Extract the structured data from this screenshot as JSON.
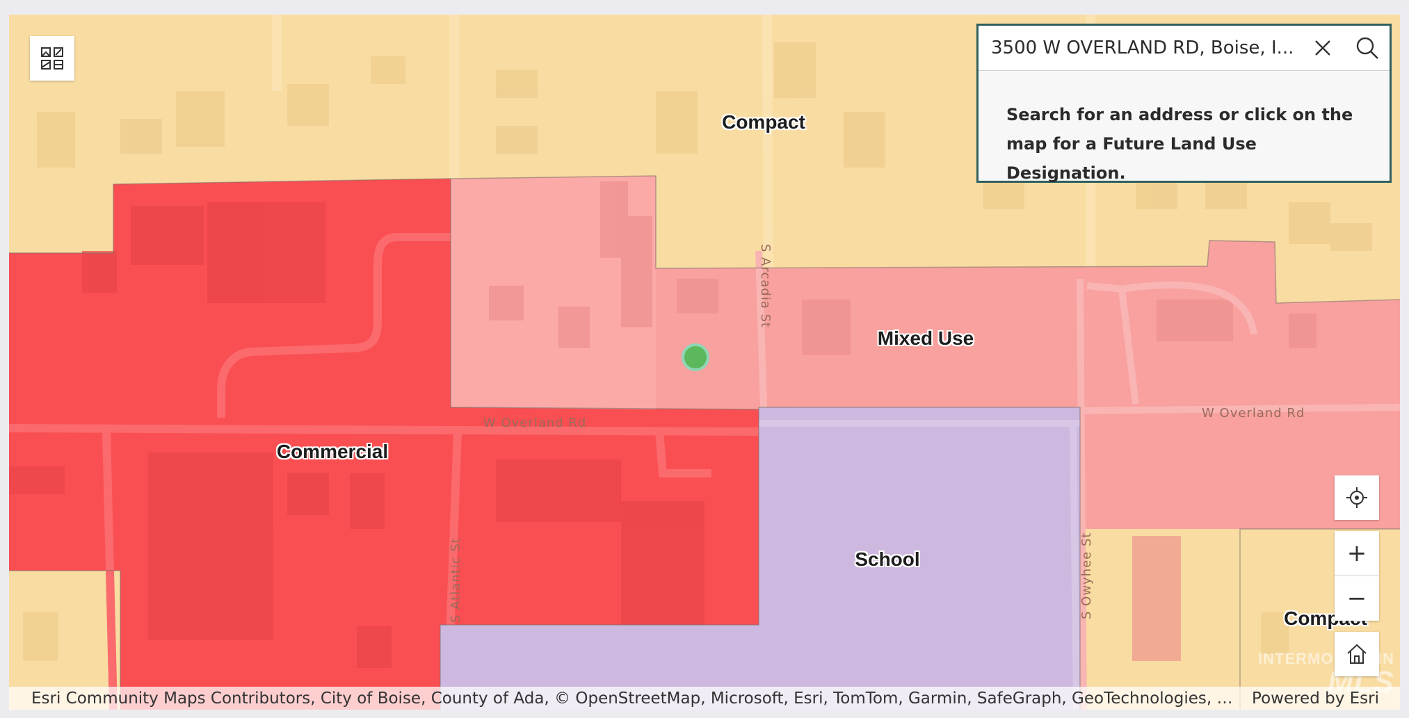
{
  "map": {
    "zones": {
      "compact_top": "Compact",
      "mixed_use": "Mixed Use",
      "commercial": "Commercial",
      "school": "School",
      "compact_bottom_right": "Compact"
    },
    "streets": {
      "overland_left": "W Overland Rd",
      "overland_right": "W Overland Rd",
      "arcadia": "S Arcadia St",
      "atlantic": "S Atlantic St",
      "owyhee": "S Owyhee St"
    },
    "colors": {
      "compact": "#f9dca1",
      "mixed_use": "#f8a19f",
      "commercial": "#fa4f52",
      "school": "#cdb8df",
      "marker": "#5cb85c"
    }
  },
  "search": {
    "value": "3500 W OVERLAND RD, Boise, I...",
    "clear_icon": "close-icon",
    "search_icon": "search-icon",
    "message": "Search for an address or click on the map for a Future Land Use Designation."
  },
  "widgets": {
    "basemap_icon": "basemap-gallery-icon",
    "locate_icon": "locate-icon",
    "zoom_in": "+",
    "zoom_out": "−",
    "home_icon": "home-icon"
  },
  "attribution": {
    "text": "Esri Community Maps Contributors, City of Boise, County of Ada, © OpenStreetMap, Microsoft, Esri, TomTom, Garmin, SafeGraph, GeoTechnologies, Inc, METI/…",
    "powered_by": "Powered by Esri"
  },
  "watermark": {
    "line1": "INTERMOUNTAIN",
    "line2": "MLS"
  }
}
